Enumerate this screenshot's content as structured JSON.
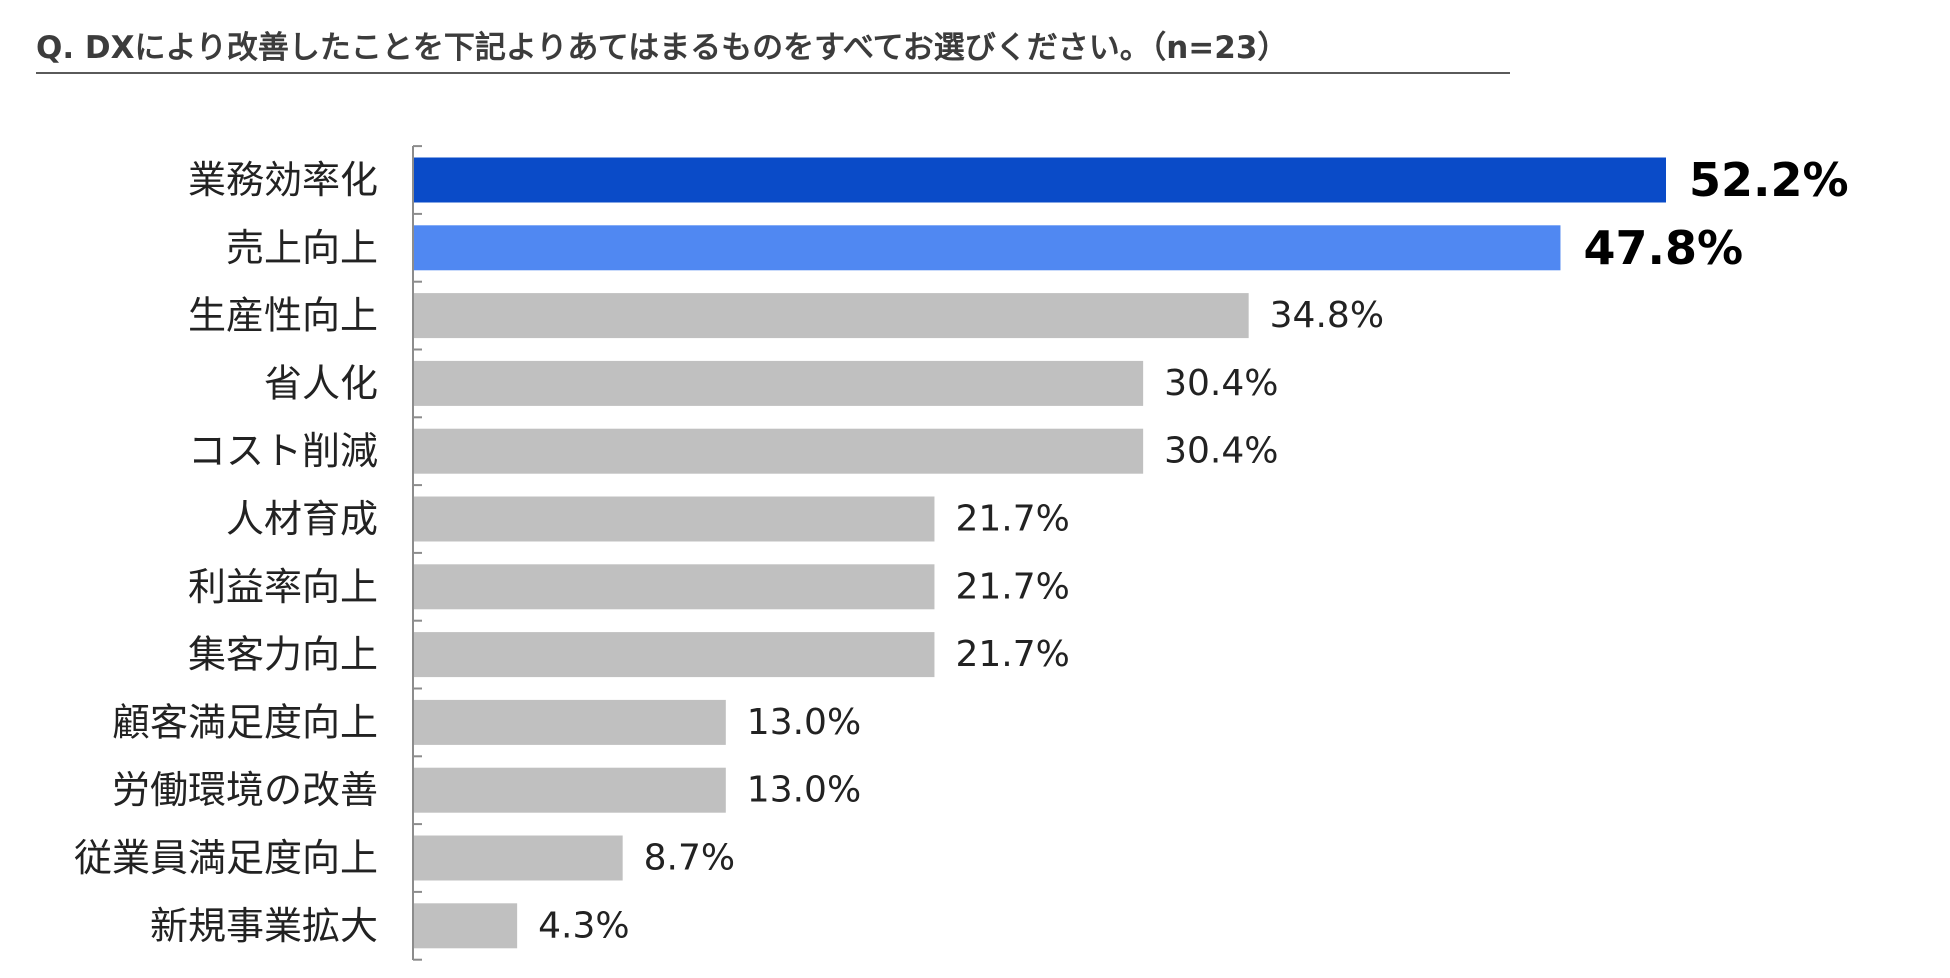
{
  "question": "Q. DXにより改善したことを下記よりあてはまるものをすべてお選びください。（n=23）",
  "colors": {
    "primary": "#0a4bc8",
    "secondary": "#5088f2",
    "other": "#c0c0c0"
  },
  "chart_data": {
    "type": "bar",
    "orientation": "horizontal",
    "title": "",
    "xlabel": "",
    "ylabel": "",
    "xlim": [
      0,
      60
    ],
    "grid": false,
    "legend": "none",
    "categories": [
      "業務効率化",
      "売上向上",
      "生産性向上",
      "省人化",
      "コスト削減",
      "人材育成",
      "利益率向上",
      "集客力向上",
      "顧客満足度向上",
      "労働環境の改善",
      "従業員満足度向上",
      "新規事業拡大"
    ],
    "values": [
      52.2,
      47.8,
      34.8,
      30.4,
      30.4,
      21.7,
      21.7,
      21.7,
      13.0,
      13.0,
      8.7,
      4.3
    ],
    "value_labels": [
      "52.2%",
      "47.8%",
      "34.8%",
      "30.4%",
      "30.4%",
      "21.7%",
      "21.7%",
      "21.7%",
      "13.0%",
      "13.0%",
      "8.7%",
      "4.3%"
    ],
    "highlight": [
      "primary",
      "secondary",
      "other",
      "other",
      "other",
      "other",
      "other",
      "other",
      "other",
      "other",
      "other",
      "other"
    ]
  }
}
